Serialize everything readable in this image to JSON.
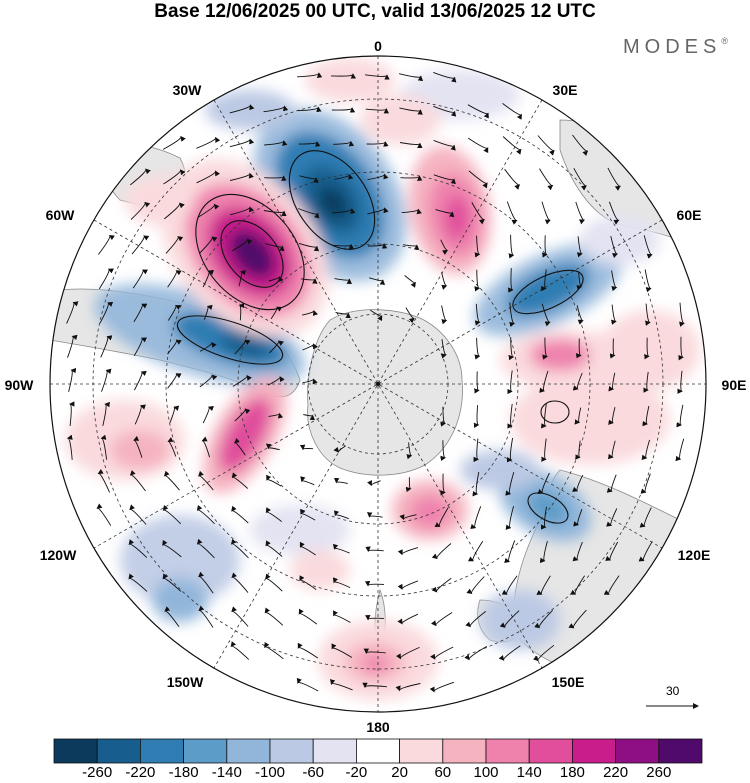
{
  "title": "Base 12/06/2025 00 UTC, valid 13/06/2025 12 UTC",
  "brand": "MODES",
  "brand_mark": "®",
  "longitude_labels": {
    "lon_0": "0",
    "lon_30e": "30E",
    "lon_60e": "60E",
    "lon_90e": "90E",
    "lon_120e": "120E",
    "lon_150e": "150E",
    "lon_180": "180",
    "lon_150w": "150W",
    "lon_120w": "120W",
    "lon_90w": "90W",
    "lon_60w": "60W",
    "lon_30w": "30W"
  },
  "vector_reference": "30",
  "colorbar": {
    "labels": [
      "-260",
      "-220",
      "-180",
      "-140",
      "-100",
      "-60",
      "-20",
      "20",
      "60",
      "100",
      "140",
      "180",
      "220",
      "260"
    ],
    "colors": [
      "#0b3a5c",
      "#175e8e",
      "#2f7db3",
      "#5b9cc8",
      "#92b6da",
      "#bcc9e4",
      "#e3e3f2",
      "#ffffff",
      "#fadadd",
      "#f5b3c0",
      "#ef82ad",
      "#e04e9c",
      "#c81d8a",
      "#8e0f83",
      "#4f0a6b"
    ]
  },
  "colors": {
    "land": "#e6e6e6",
    "negative_strong": "#175e8e",
    "positive_strong": "#c81d8a"
  }
}
